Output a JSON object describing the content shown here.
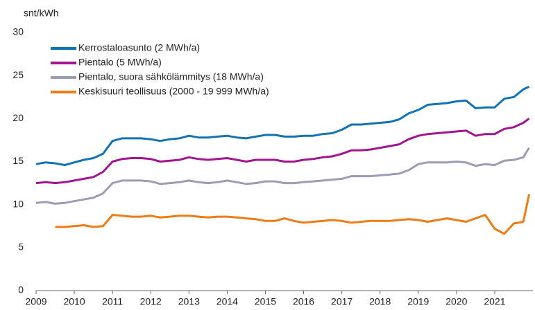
{
  "chart_data": {
    "type": "line",
    "y_label": "snt/kWh",
    "x": [
      2009,
      2009.25,
      2009.5,
      2009.75,
      2010,
      2010.25,
      2010.5,
      2010.75,
      2011,
      2011.25,
      2011.5,
      2011.75,
      2012,
      2012.25,
      2012.5,
      2012.75,
      2013,
      2013.25,
      2013.5,
      2013.75,
      2014,
      2014.25,
      2014.5,
      2014.75,
      2015,
      2015.25,
      2015.5,
      2015.75,
      2016,
      2016.25,
      2016.5,
      2016.75,
      2017,
      2017.25,
      2017.5,
      2017.75,
      2018,
      2018.25,
      2018.5,
      2018.75,
      2019,
      2019.25,
      2019.5,
      2019.75,
      2020,
      2020.25,
      2020.5,
      2020.75,
      2021,
      2021.25,
      2021.5,
      2021.75,
      2021.9
    ],
    "series": [
      {
        "name": "Kerrostaloasunto (2 MWh/a)",
        "color": "#1173b4",
        "values": [
          14.7,
          14.9,
          14.8,
          14.6,
          14.9,
          15.2,
          15.4,
          15.9,
          17.4,
          17.7,
          17.7,
          17.7,
          17.6,
          17.4,
          17.6,
          17.7,
          18.0,
          17.8,
          17.8,
          17.9,
          18.0,
          17.8,
          17.7,
          17.9,
          18.1,
          18.1,
          17.9,
          17.9,
          18.0,
          18.0,
          18.2,
          18.3,
          18.7,
          19.3,
          19.3,
          19.4,
          19.5,
          19.6,
          19.9,
          20.6,
          21.0,
          21.6,
          21.7,
          21.8,
          22.0,
          22.1,
          21.2,
          21.3,
          21.3,
          22.3,
          22.5,
          23.4,
          23.7
        ]
      },
      {
        "name": "Pientalo (5 MWh/a)",
        "color": "#a3158f",
        "values": [
          12.5,
          12.6,
          12.5,
          12.6,
          12.8,
          13.0,
          13.2,
          13.8,
          15.0,
          15.3,
          15.4,
          15.4,
          15.3,
          15.0,
          15.1,
          15.2,
          15.5,
          15.3,
          15.2,
          15.3,
          15.4,
          15.2,
          15.0,
          15.2,
          15.2,
          15.2,
          15.0,
          15.0,
          15.2,
          15.3,
          15.5,
          15.6,
          15.9,
          16.3,
          16.3,
          16.4,
          16.6,
          16.8,
          17.0,
          17.6,
          18.0,
          18.2,
          18.3,
          18.4,
          18.5,
          18.6,
          18.0,
          18.2,
          18.2,
          18.8,
          19.0,
          19.5,
          20.0
        ]
      },
      {
        "name": "Pientalo, suora sähkölämmitys (18 MWh/a)",
        "color": "#9c9cb4",
        "values": [
          10.2,
          10.3,
          10.1,
          10.2,
          10.4,
          10.6,
          10.8,
          11.3,
          12.5,
          12.8,
          12.8,
          12.8,
          12.7,
          12.4,
          12.5,
          12.6,
          12.8,
          12.6,
          12.5,
          12.6,
          12.8,
          12.6,
          12.4,
          12.5,
          12.7,
          12.7,
          12.5,
          12.5,
          12.6,
          12.7,
          12.8,
          12.9,
          13.0,
          13.3,
          13.3,
          13.3,
          13.4,
          13.5,
          13.6,
          14.0,
          14.7,
          14.9,
          14.9,
          14.9,
          15.0,
          14.9,
          14.5,
          14.7,
          14.6,
          15.1,
          15.2,
          15.5,
          16.6
        ]
      },
      {
        "name": "Keskisuuri teollisuus (2000 - 19 999 MWh/a)",
        "color": "#ee7b14",
        "values": [
          null,
          null,
          7.4,
          7.4,
          7.5,
          7.6,
          7.4,
          7.5,
          8.8,
          8.7,
          8.6,
          8.6,
          8.7,
          8.5,
          8.6,
          8.7,
          8.7,
          8.6,
          8.5,
          8.6,
          8.6,
          8.5,
          8.4,
          8.3,
          8.1,
          8.1,
          8.4,
          8.1,
          7.9,
          8.0,
          8.1,
          8.2,
          8.1,
          7.9,
          8.0,
          8.1,
          8.1,
          8.1,
          8.2,
          8.3,
          8.2,
          8.0,
          8.2,
          8.4,
          8.2,
          8.0,
          8.4,
          8.8,
          7.2,
          6.6,
          7.8,
          8.0,
          11.2
        ]
      }
    ],
    "xlim": [
      2009,
      2022
    ],
    "xticks": [
      2009,
      2010,
      2011,
      2012,
      2013,
      2014,
      2015,
      2016,
      2017,
      2018,
      2019,
      2020,
      2021
    ],
    "ylim": [
      0,
      30
    ],
    "yticks": [
      0,
      5,
      10,
      15,
      20,
      25,
      30
    ],
    "grid": false,
    "legend": "top-left"
  }
}
